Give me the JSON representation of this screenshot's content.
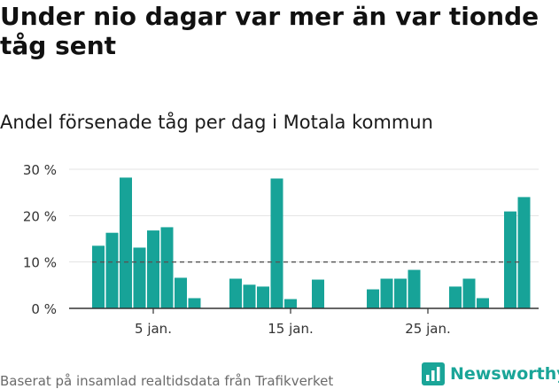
{
  "title": "Under nio dagar var mer än var tionde tåg sent",
  "subtitle": "Andel försenade tåg per dag i Motala kommun",
  "source": "Baserat på insamlad realtidsdata från Trafikverket",
  "brand": {
    "name": "Newsworthy",
    "logo_icon": "bar-chart-logo-icon",
    "color": "#1aa598"
  },
  "chart_data": {
    "type": "bar",
    "x": [
      1,
      2,
      3,
      4,
      5,
      6,
      7,
      8,
      9,
      10,
      11,
      12,
      13,
      14,
      15,
      16,
      17,
      18,
      19,
      20,
      21,
      22,
      23,
      24,
      25,
      26,
      27,
      28,
      29,
      30
    ],
    "values": [
      13.5,
      16.3,
      28.2,
      13.1,
      16.8,
      17.5,
      6.6,
      2.2,
      null,
      null,
      6.4,
      5.1,
      4.7,
      28.0,
      2.0,
      null,
      6.2,
      null,
      null,
      null,
      4.1,
      6.4,
      6.4,
      8.3,
      null,
      null,
      4.7,
      6.4,
      2.2,
      null
    ],
    "extra_values": [
      20.9,
      24.0
    ],
    "bar_color": "#17a398",
    "reference_line": {
      "value": 10,
      "style": "dashed"
    },
    "ylim": [
      0,
      30
    ],
    "yticks": [
      {
        "value": 0,
        "label": "0 %"
      },
      {
        "value": 10,
        "label": "10 %"
      },
      {
        "value": 20,
        "label": "20 %"
      },
      {
        "value": 30,
        "label": "30 %"
      }
    ],
    "xticks": [
      {
        "value": 5,
        "label": "5 jan."
      },
      {
        "value": 15,
        "label": "15 jan."
      },
      {
        "value": 25,
        "label": "25 jan."
      }
    ],
    "grid": true
  }
}
